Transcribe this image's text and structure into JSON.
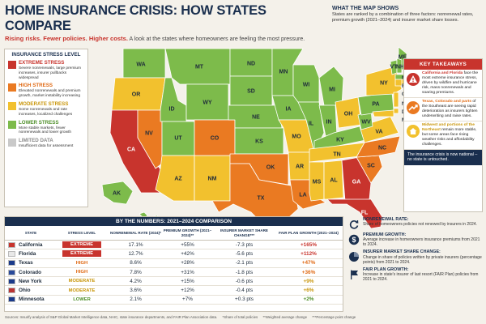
{
  "header": {
    "title": "HOME INSURANCE CRISIS: HOW STATES COMPARE",
    "subtitle_bold": "Rising risks. Fewer policies. Higher costs.",
    "subtitle_rest": "A look at the states where homeowners are feeling the most pressure."
  },
  "what_map_shows": {
    "title": "WHAT THE MAP SHOWS",
    "text": "States are ranked by a combination of three factors: nonrenewal rates, premium growth (2021–2024) and insurer market share losses."
  },
  "legend": {
    "title": "INSURANCE STRESS LEVEL",
    "items": [
      {
        "name": "EXTREME STRESS",
        "desc": "Severe nonrenewals, large premium increases, insurer pullbacks widespread",
        "color": "#c8342d",
        "text_color": "#c8342d"
      },
      {
        "name": "HIGH STRESS",
        "desc": "Elevated nonrenewals and premium growth, market instability increasing",
        "color": "#ea7a22",
        "text_color": "#e06a14"
      },
      {
        "name": "MODERATE STRESS",
        "desc": "Some nonrenewals and rate increases, localized challenges",
        "color": "#f2c12e",
        "text_color": "#c9960a"
      },
      {
        "name": "LOWER STRESS",
        "desc": "More stable markets, fewer nonrenewals and lower growth",
        "color": "#7dbb4b",
        "text_color": "#4f8f2a"
      },
      {
        "name": "LIMITED DATA",
        "desc": "Insufficient data for assessment",
        "color": "#c9c9c9",
        "text_color": "#8a8a8a"
      }
    ]
  },
  "map": {
    "colors": {
      "extreme": "#c8342d",
      "high": "#ea7a22",
      "moderate": "#f2c12e",
      "lower": "#7dbb4b",
      "limited": "#c9c9c9"
    },
    "labels": [
      "WA",
      "OR",
      "CA",
      "NV",
      "ID",
      "MT",
      "WY",
      "UT",
      "AZ",
      "NM",
      "CO",
      "ND",
      "SD",
      "NE",
      "KS",
      "OK",
      "TX",
      "MN",
      "IA",
      "MO",
      "AR",
      "LA",
      "WI",
      "IL",
      "MI",
      "IN",
      "OH",
      "KY",
      "TN",
      "MS",
      "AL",
      "GA",
      "FL",
      "SC",
      "NC",
      "VA",
      "WV",
      "PA",
      "NY",
      "ME",
      "VT",
      "NH",
      "MA",
      "RI",
      "CT",
      "NJ",
      "DE",
      "MD",
      "AK",
      "HI"
    ]
  },
  "key_takeaways": {
    "title": "KEY TAKEAWAYS",
    "items": [
      {
        "lead": "California and Florida",
        "text": "face the most extreme insurance stress, driven by wildfire and hurricane risk, mass nonrenewals and soaring premiums.",
        "color": "#c8342d",
        "icon": "warning-icon"
      },
      {
        "lead": "Texas, Colorado and parts",
        "text": "of the Southeast are seeing rapid deterioration as insurers tighten underwriting and raise rates.",
        "color": "#e06a14",
        "icon": "trend-up-icon"
      },
      {
        "lead": "Midwest and portions of the Northeast",
        "text": "remain more stable, but some areas face rising weather risks and affordability challenges.",
        "color": "#c9960a",
        "icon": "house-icon"
      }
    ],
    "conclusion": "The insurance crisis is now national – no state is untouched."
  },
  "table": {
    "title": "BY THE NUMBERS: 2021–2024 COMPARISON",
    "headers": [
      "STATE",
      "STRESS LEVEL",
      "NONRENEWAL RATE (2024)*",
      "PREMIUM GROWTH (2021–2024)**",
      "INSURER MARKET SHARE CHANGE***",
      "FAIR PLAN GROWTH (2021–2024)"
    ],
    "rows": [
      {
        "state": "California",
        "level": "EXTREME",
        "nonrenewal": "17.1%",
        "premium": "+55%",
        "share": "-7.3 pts",
        "fair": "+165%",
        "level_color": "#c8342d",
        "fair_color": "#c8342d",
        "flag_color": "#c8342d"
      },
      {
        "state": "Florida",
        "level": "EXTREME",
        "nonrenewal": "12.7%",
        "premium": "+42%",
        "share": "-5.6 pts",
        "fair": "+112%",
        "level_color": "#c8342d",
        "fair_color": "#c8342d",
        "flag_color": "#e8e8e8"
      },
      {
        "state": "Texas",
        "level": "HIGH",
        "nonrenewal": "8.6%",
        "premium": "+28%",
        "share": "-2.1 pts",
        "fair": "+47%",
        "level_color": "#e06a14",
        "fair_color": "#e06a14",
        "flag_color": "#1a3a8a"
      },
      {
        "state": "Colorado",
        "level": "HIGH",
        "nonrenewal": "7.8%",
        "premium": "+31%",
        "share": "-1.8 pts",
        "fair": "+36%",
        "level_color": "#e06a14",
        "fair_color": "#e06a14",
        "flag_color": "#2a4a9a"
      },
      {
        "state": "New York",
        "level": "MODERATE",
        "nonrenewal": "4.2%",
        "premium": "+15%",
        "share": "-0.6 pts",
        "fair": "+9%",
        "level_color": "#c9960a",
        "fair_color": "#c9960a",
        "flag_color": "#1a3a8a"
      },
      {
        "state": "Ohio",
        "level": "MODERATE",
        "nonrenewal": "3.6%",
        "premium": "+12%",
        "share": "-0.4 pts",
        "fair": "+6%",
        "level_color": "#c9960a",
        "fair_color": "#c9960a",
        "flag_color": "#b33"
      },
      {
        "state": "Minnesota",
        "level": "LOWER",
        "nonrenewal": "2.1%",
        "premium": "+7%",
        "share": "+0.3 pts",
        "fair": "+2%",
        "level_color": "#4f8f2a",
        "fair_color": "#4f8f2a",
        "flag_color": "#1a3a8a"
      }
    ]
  },
  "definitions": [
    {
      "term": "NONRENEWAL RATE:",
      "text": "Share of homeowners policies not renewed by insurers in 2024.",
      "icon": "refresh-icon"
    },
    {
      "term": "PREMIUM GROWTH:",
      "text": "Average increase in homeowners insurance premiums from 2021 to 2024.",
      "icon": "dollar-icon"
    },
    {
      "term": "INSURER MARKET SHARE CHANGE:",
      "text": "Change in share of policies written by private insurers (percentage points) from 2021 to 2024.",
      "icon": "pie-icon"
    },
    {
      "term": "FAIR PLAN GROWTH:",
      "text": "Increase in state's insurer of last resort (FAIR Plan) policies from 2021 to 2024.",
      "icon": "flag-icon"
    }
  ],
  "sources": {
    "text": "Sources: Insurify analysis of S&P Global Market Intelligence data, NAIC, state insurance departments, and FAIR Plan Association data.",
    "n1": "*Share of total policies",
    "n2": "**Weighted average change",
    "n3": "***Percentage point change"
  }
}
